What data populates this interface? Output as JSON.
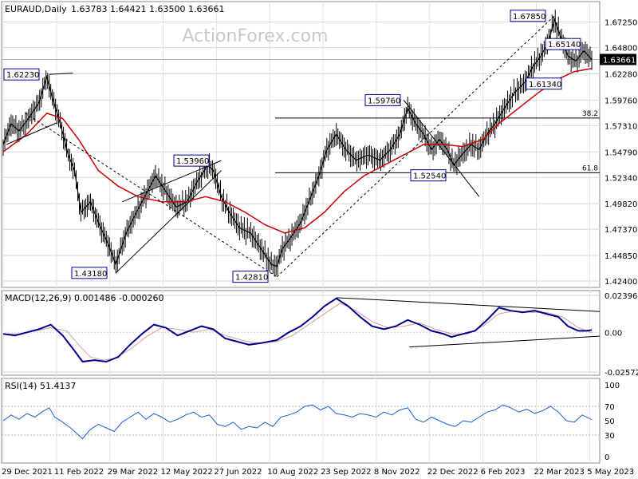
{
  "chart_data": [
    {
      "type": "candlestick",
      "title": "EURAUD,Daily",
      "ohlc_header": "1.63783 1.64421 1.63500 1.63661",
      "watermark": "ActionForex.com",
      "current_price_label": "1.63661",
      "y_ticks": [
        "1.67250",
        "1.64800",
        "1.62280",
        "1.59760",
        "1.57310",
        "1.54790",
        "1.52340",
        "1.49820",
        "1.47370",
        "1.44850",
        "1.42400"
      ],
      "ylim": [
        1.424,
        1.6799
      ],
      "x_ticks": [
        "29 Dec 2021",
        "11 Feb 2022",
        "29 Mar 2022",
        "12 May 2022",
        "27 Jun 2022",
        "10 Aug 2022",
        "23 Sep 2022",
        "8 Nov 2022",
        "22 Dec 2022",
        "6 Feb 2023",
        "22 Mar 2023",
        "5 May 2023"
      ],
      "close_path": [
        [
          0,
          1.555
        ],
        [
          10,
          1.575
        ],
        [
          20,
          1.568
        ],
        [
          30,
          1.578
        ],
        [
          45,
          1.595
        ],
        [
          55,
          1.62
        ],
        [
          62,
          1.6
        ],
        [
          72,
          1.575
        ],
        [
          82,
          1.545
        ],
        [
          90,
          1.53
        ],
        [
          98,
          1.49
        ],
        [
          110,
          1.5
        ],
        [
          120,
          1.48
        ],
        [
          132,
          1.46
        ],
        [
          142,
          1.44
        ],
        [
          155,
          1.47
        ],
        [
          168,
          1.49
        ],
        [
          182,
          1.51
        ],
        [
          192,
          1.525
        ],
        [
          205,
          1.51
        ],
        [
          218,
          1.495
        ],
        [
          232,
          1.5
        ],
        [
          245,
          1.52
        ],
        [
          258,
          1.535
        ],
        [
          265,
          1.53
        ],
        [
          275,
          1.505
        ],
        [
          285,
          1.49
        ],
        [
          298,
          1.475
        ],
        [
          312,
          1.47
        ],
        [
          325,
          1.455
        ],
        [
          338,
          1.44
        ],
        [
          345,
          1.438
        ],
        [
          352,
          1.455
        ],
        [
          362,
          1.465
        ],
        [
          375,
          1.48
        ],
        [
          388,
          1.505
        ],
        [
          398,
          1.525
        ],
        [
          408,
          1.55
        ],
        [
          420,
          1.565
        ],
        [
          432,
          1.55
        ],
        [
          445,
          1.54
        ],
        [
          460,
          1.545
        ],
        [
          475,
          1.54
        ],
        [
          488,
          1.55
        ],
        [
          500,
          1.565
        ],
        [
          510,
          1.59
        ],
        [
          520,
          1.575
        ],
        [
          530,
          1.565
        ],
        [
          540,
          1.55
        ],
        [
          550,
          1.56
        ],
        [
          560,
          1.55
        ],
        [
          568,
          1.535
        ],
        [
          578,
          1.545
        ],
        [
          590,
          1.555
        ],
        [
          600,
          1.55
        ],
        [
          610,
          1.565
        ],
        [
          620,
          1.575
        ],
        [
          632,
          1.59
        ],
        [
          645,
          1.605
        ],
        [
          658,
          1.615
        ],
        [
          668,
          1.63
        ],
        [
          678,
          1.64
        ],
        [
          688,
          1.655
        ],
        [
          695,
          1.675
        ],
        [
          702,
          1.66
        ],
        [
          712,
          1.64
        ],
        [
          722,
          1.635
        ],
        [
          732,
          1.645
        ],
        [
          742,
          1.6366
        ]
      ],
      "ma_path": [
        [
          0,
          1.548
        ],
        [
          30,
          1.565
        ],
        [
          55,
          1.585
        ],
        [
          75,
          1.58
        ],
        [
          95,
          1.56
        ],
        [
          120,
          1.53
        ],
        [
          145,
          1.515
        ],
        [
          170,
          1.505
        ],
        [
          200,
          1.5
        ],
        [
          230,
          1.5
        ],
        [
          255,
          1.505
        ],
        [
          280,
          1.5
        ],
        [
          305,
          1.49
        ],
        [
          330,
          1.478
        ],
        [
          355,
          1.47
        ],
        [
          380,
          1.475
        ],
        [
          405,
          1.49
        ],
        [
          430,
          1.51
        ],
        [
          455,
          1.525
        ],
        [
          480,
          1.535
        ],
        [
          505,
          1.545
        ],
        [
          530,
          1.555
        ],
        [
          555,
          1.555
        ],
        [
          580,
          1.553
        ],
        [
          605,
          1.56
        ],
        [
          625,
          1.575
        ],
        [
          650,
          1.59
        ],
        [
          675,
          1.605
        ],
        [
          700,
          1.618
        ],
        [
          720,
          1.625
        ],
        [
          742,
          1.628
        ]
      ],
      "annotations": [
        {
          "label": "1.62230",
          "value": 1.6223
        },
        {
          "label": "1.43180",
          "value": 1.4318
        },
        {
          "label": "1.53960",
          "value": 1.5396
        },
        {
          "label": "1.42810",
          "value": 1.4281
        },
        {
          "label": "1.59760",
          "value": 1.5976
        },
        {
          "label": "1.52540",
          "value": 1.5254
        },
        {
          "label": "1.67850",
          "value": 1.6785
        },
        {
          "label": "1.65140",
          "value": 1.6514
        },
        {
          "label": "1.61340",
          "value": 1.6134
        }
      ],
      "fib_levels": [
        {
          "label": "38.2",
          "value": 1.5804
        },
        {
          "label": "61.8",
          "value": 1.5279
        }
      ],
      "colors": {
        "price": "#000000",
        "ma": "#cc0000",
        "grid": "#c8c8c8",
        "box": "#00008b"
      }
    },
    {
      "type": "line",
      "title": "MACD(12,26,9) 0.001486 -0.000260",
      "y_ticks": [
        "0.023963",
        "0.00",
        "-0.025726"
      ],
      "ylim": [
        -0.025726,
        0.023963
      ],
      "macd_path": [
        [
          0,
          -0.001
        ],
        [
          15,
          -0.002
        ],
        [
          30,
          0.0
        ],
        [
          45,
          0.002
        ],
        [
          60,
          0.005
        ],
        [
          75,
          -0.002
        ],
        [
          90,
          -0.012
        ],
        [
          100,
          -0.019
        ],
        [
          115,
          -0.018
        ],
        [
          130,
          -0.019
        ],
        [
          145,
          -0.016
        ],
        [
          160,
          -0.008
        ],
        [
          175,
          -0.001
        ],
        [
          190,
          0.005
        ],
        [
          205,
          0.003
        ],
        [
          220,
          -0.002
        ],
        [
          235,
          0.001
        ],
        [
          250,
          0.004
        ],
        [
          265,
          0.002
        ],
        [
          280,
          -0.004
        ],
        [
          295,
          -0.006
        ],
        [
          310,
          -0.008
        ],
        [
          325,
          -0.007
        ],
        [
          345,
          -0.005
        ],
        [
          360,
          0.0
        ],
        [
          375,
          0.004
        ],
        [
          390,
          0.01
        ],
        [
          405,
          0.017
        ],
        [
          420,
          0.022
        ],
        [
          435,
          0.017
        ],
        [
          450,
          0.01
        ],
        [
          465,
          0.004
        ],
        [
          480,
          0.002
        ],
        [
          495,
          0.004
        ],
        [
          510,
          0.008
        ],
        [
          525,
          0.005
        ],
        [
          540,
          0.001
        ],
        [
          555,
          -0.001
        ],
        [
          565,
          -0.003
        ],
        [
          580,
          -0.001
        ],
        [
          595,
          0.001
        ],
        [
          610,
          0.008
        ],
        [
          625,
          0.016
        ],
        [
          640,
          0.014
        ],
        [
          655,
          0.013
        ],
        [
          670,
          0.014
        ],
        [
          685,
          0.012
        ],
        [
          700,
          0.01
        ],
        [
          712,
          0.004
        ],
        [
          725,
          0.001
        ],
        [
          735,
          0.001
        ],
        [
          742,
          0.0015
        ]
      ],
      "signal_path": [
        [
          0,
          -0.001
        ],
        [
          20,
          -0.001
        ],
        [
          40,
          0.001
        ],
        [
          60,
          0.003
        ],
        [
          80,
          0.001
        ],
        [
          95,
          -0.008
        ],
        [
          110,
          -0.016
        ],
        [
          125,
          -0.018
        ],
        [
          140,
          -0.017
        ],
        [
          160,
          -0.011
        ],
        [
          180,
          -0.003
        ],
        [
          200,
          0.003
        ],
        [
          220,
          0.002
        ],
        [
          240,
          0.0
        ],
        [
          260,
          0.002
        ],
        [
          280,
          -0.002
        ],
        [
          300,
          -0.005
        ],
        [
          320,
          -0.007
        ],
        [
          345,
          -0.006
        ],
        [
          365,
          -0.002
        ],
        [
          385,
          0.005
        ],
        [
          405,
          0.012
        ],
        [
          425,
          0.019
        ],
        [
          445,
          0.014
        ],
        [
          465,
          0.007
        ],
        [
          485,
          0.003
        ],
        [
          505,
          0.004
        ],
        [
          525,
          0.006
        ],
        [
          545,
          0.002
        ],
        [
          565,
          -0.001
        ],
        [
          585,
          -0.001
        ],
        [
          605,
          0.004
        ],
        [
          625,
          0.012
        ],
        [
          645,
          0.014
        ],
        [
          665,
          0.013
        ],
        [
          685,
          0.013
        ],
        [
          705,
          0.01
        ],
        [
          725,
          0.003
        ],
        [
          742,
          -0.0003
        ]
      ],
      "colors": {
        "macd": "#00008b",
        "signal": "#d99a9a"
      }
    },
    {
      "type": "line",
      "title": "RSI(14) 51.4137",
      "y_ticks": [
        "100",
        "70",
        "50",
        "30",
        "0"
      ],
      "ylim": [
        0,
        100
      ],
      "rsi_path": [
        [
          0,
          50
        ],
        [
          10,
          58
        ],
        [
          20,
          52
        ],
        [
          30,
          60
        ],
        [
          40,
          55
        ],
        [
          50,
          63
        ],
        [
          58,
          68
        ],
        [
          65,
          55
        ],
        [
          75,
          48
        ],
        [
          85,
          40
        ],
        [
          95,
          30
        ],
        [
          100,
          25
        ],
        [
          110,
          38
        ],
        [
          120,
          45
        ],
        [
          130,
          40
        ],
        [
          140,
          35
        ],
        [
          150,
          48
        ],
        [
          160,
          55
        ],
        [
          170,
          62
        ],
        [
          180,
          52
        ],
        [
          190,
          60
        ],
        [
          200,
          55
        ],
        [
          210,
          48
        ],
        [
          220,
          52
        ],
        [
          230,
          58
        ],
        [
          240,
          62
        ],
        [
          250,
          55
        ],
        [
          260,
          58
        ],
        [
          270,
          45
        ],
        [
          280,
          42
        ],
        [
          290,
          48
        ],
        [
          300,
          38
        ],
        [
          310,
          42
        ],
        [
          320,
          40
        ],
        [
          330,
          48
        ],
        [
          340,
          42
        ],
        [
          350,
          55
        ],
        [
          360,
          58
        ],
        [
          370,
          62
        ],
        [
          380,
          70
        ],
        [
          390,
          72
        ],
        [
          400,
          65
        ],
        [
          410,
          70
        ],
        [
          420,
          60
        ],
        [
          430,
          58
        ],
        [
          440,
          55
        ],
        [
          450,
          60
        ],
        [
          460,
          58
        ],
        [
          470,
          55
        ],
        [
          480,
          62
        ],
        [
          490,
          58
        ],
        [
          500,
          65
        ],
        [
          510,
          68
        ],
        [
          520,
          52
        ],
        [
          530,
          48
        ],
        [
          540,
          55
        ],
        [
          550,
          50
        ],
        [
          560,
          45
        ],
        [
          570,
          42
        ],
        [
          580,
          50
        ],
        [
          590,
          48
        ],
        [
          600,
          55
        ],
        [
          610,
          62
        ],
        [
          620,
          65
        ],
        [
          630,
          72
        ],
        [
          640,
          68
        ],
        [
          650,
          62
        ],
        [
          660,
          66
        ],
        [
          670,
          60
        ],
        [
          680,
          64
        ],
        [
          690,
          70
        ],
        [
          700,
          62
        ],
        [
          710,
          50
        ],
        [
          720,
          48
        ],
        [
          730,
          58
        ],
        [
          742,
          51.41
        ]
      ],
      "colors": {
        "rsi": "#1a5fd6"
      }
    }
  ]
}
